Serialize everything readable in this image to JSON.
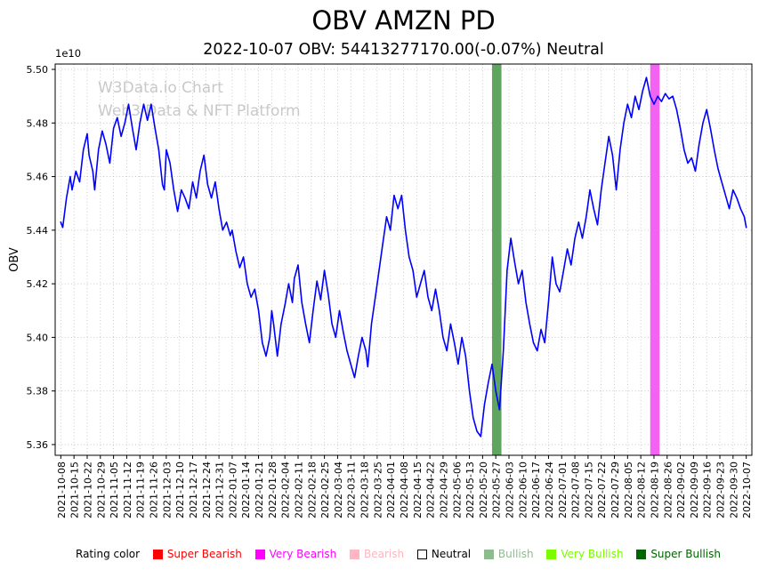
{
  "chart_data": {
    "type": "line",
    "title": "OBV AMZN PD",
    "subtitle": "2022-10-07 OBV: 54413277170.00(-0.07%) Neutral",
    "ylabel": "OBV",
    "offset_label": "1e10",
    "units": "y values are in 1e10",
    "watermark": [
      "W3Data.io Chart",
      "Web3 Data & NFT Platform"
    ],
    "series_name": "OBV",
    "line_color": "#0000ff",
    "grid": true,
    "ylim": [
      5.356,
      5.502
    ],
    "xlim": [
      -3,
      367
    ],
    "y_ticks": [
      5.36,
      5.38,
      5.4,
      5.42,
      5.44,
      5.46,
      5.48,
      5.5
    ],
    "x_tick_interval_days": 7,
    "x_tick_labels": [
      "2021-10-08",
      "2021-10-15",
      "2021-10-22",
      "2021-10-29",
      "2021-11-05",
      "2021-11-12",
      "2021-11-19",
      "2021-11-26",
      "2021-12-03",
      "2021-12-10",
      "2021-12-17",
      "2021-12-24",
      "2021-12-31",
      "2022-01-07",
      "2022-01-14",
      "2022-01-21",
      "2022-01-28",
      "2022-02-04",
      "2022-02-11",
      "2022-02-18",
      "2022-02-25",
      "2022-03-04",
      "2022-03-11",
      "2022-03-18",
      "2022-03-25",
      "2022-04-01",
      "2022-04-08",
      "2022-04-15",
      "2022-04-22",
      "2022-04-29",
      "2022-05-06",
      "2022-05-13",
      "2022-05-20",
      "2022-05-27",
      "2022-06-03",
      "2022-06-10",
      "2022-06-17",
      "2022-06-24",
      "2022-07-01",
      "2022-07-08",
      "2022-07-15",
      "2022-07-22",
      "2022-07-29",
      "2022-08-05",
      "2022-08-12",
      "2022-08-19",
      "2022-08-26",
      "2022-09-02",
      "2022-09-09",
      "2022-09-16",
      "2022-09-23",
      "2022-09-30",
      "2022-10-07"
    ],
    "bands": [
      {
        "rating": "Bullish",
        "from_day": 229,
        "to_day": 234,
        "color": "#5fa55f"
      },
      {
        "rating": "Very Bearish",
        "from_day": 313,
        "to_day": 318,
        "color": "#f263f2"
      }
    ],
    "points": [
      [
        0,
        5.443
      ],
      [
        1,
        5.441
      ],
      [
        3,
        5.452
      ],
      [
        5,
        5.46
      ],
      [
        6,
        5.455
      ],
      [
        8,
        5.462
      ],
      [
        10,
        5.458
      ],
      [
        12,
        5.47
      ],
      [
        14,
        5.476
      ],
      [
        15,
        5.468
      ],
      [
        17,
        5.462
      ],
      [
        18,
        5.455
      ],
      [
        20,
        5.47
      ],
      [
        22,
        5.477
      ],
      [
        24,
        5.472
      ],
      [
        26,
        5.465
      ],
      [
        28,
        5.478
      ],
      [
        30,
        5.482
      ],
      [
        32,
        5.475
      ],
      [
        34,
        5.48
      ],
      [
        36,
        5.487
      ],
      [
        38,
        5.478
      ],
      [
        40,
        5.47
      ],
      [
        42,
        5.48
      ],
      [
        44,
        5.487
      ],
      [
        46,
        5.481
      ],
      [
        48,
        5.487
      ],
      [
        50,
        5.478
      ],
      [
        52,
        5.47
      ],
      [
        54,
        5.457
      ],
      [
        55,
        5.455
      ],
      [
        56,
        5.47
      ],
      [
        58,
        5.465
      ],
      [
        60,
        5.455
      ],
      [
        62,
        5.447
      ],
      [
        64,
        5.455
      ],
      [
        66,
        5.452
      ],
      [
        68,
        5.448
      ],
      [
        70,
        5.458
      ],
      [
        72,
        5.452
      ],
      [
        74,
        5.462
      ],
      [
        76,
        5.468
      ],
      [
        78,
        5.457
      ],
      [
        80,
        5.452
      ],
      [
        82,
        5.458
      ],
      [
        84,
        5.448
      ],
      [
        86,
        5.44
      ],
      [
        88,
        5.443
      ],
      [
        90,
        5.438
      ],
      [
        91,
        5.44
      ],
      [
        93,
        5.432
      ],
      [
        95,
        5.426
      ],
      [
        97,
        5.43
      ],
      [
        99,
        5.42
      ],
      [
        101,
        5.415
      ],
      [
        103,
        5.418
      ],
      [
        105,
        5.41
      ],
      [
        107,
        5.398
      ],
      [
        109,
        5.393
      ],
      [
        111,
        5.4
      ],
      [
        112,
        5.41
      ],
      [
        113,
        5.405
      ],
      [
        115,
        5.393
      ],
      [
        117,
        5.405
      ],
      [
        119,
        5.412
      ],
      [
        121,
        5.42
      ],
      [
        123,
        5.413
      ],
      [
        124,
        5.422
      ],
      [
        126,
        5.427
      ],
      [
        128,
        5.413
      ],
      [
        130,
        5.405
      ],
      [
        132,
        5.398
      ],
      [
        134,
        5.41
      ],
      [
        136,
        5.421
      ],
      [
        138,
        5.414
      ],
      [
        140,
        5.425
      ],
      [
        142,
        5.416
      ],
      [
        144,
        5.405
      ],
      [
        146,
        5.4
      ],
      [
        148,
        5.41
      ],
      [
        150,
        5.402
      ],
      [
        152,
        5.395
      ],
      [
        154,
        5.39
      ],
      [
        156,
        5.385
      ],
      [
        158,
        5.393
      ],
      [
        160,
        5.4
      ],
      [
        162,
        5.395
      ],
      [
        163,
        5.389
      ],
      [
        165,
        5.405
      ],
      [
        167,
        5.415
      ],
      [
        169,
        5.425
      ],
      [
        171,
        5.435
      ],
      [
        173,
        5.445
      ],
      [
        175,
        5.44
      ],
      [
        177,
        5.453
      ],
      [
        179,
        5.448
      ],
      [
        181,
        5.453
      ],
      [
        183,
        5.44
      ],
      [
        185,
        5.43
      ],
      [
        187,
        5.425
      ],
      [
        189,
        5.415
      ],
      [
        191,
        5.42
      ],
      [
        193,
        5.425
      ],
      [
        195,
        5.415
      ],
      [
        197,
        5.41
      ],
      [
        199,
        5.418
      ],
      [
        201,
        5.41
      ],
      [
        203,
        5.4
      ],
      [
        205,
        5.395
      ],
      [
        207,
        5.405
      ],
      [
        209,
        5.398
      ],
      [
        211,
        5.39
      ],
      [
        213,
        5.4
      ],
      [
        215,
        5.393
      ],
      [
        217,
        5.38
      ],
      [
        219,
        5.37
      ],
      [
        221,
        5.365
      ],
      [
        223,
        5.363
      ],
      [
        225,
        5.375
      ],
      [
        227,
        5.383
      ],
      [
        229,
        5.39
      ],
      [
        231,
        5.38
      ],
      [
        233,
        5.373
      ],
      [
        235,
        5.395
      ],
      [
        236,
        5.41
      ],
      [
        237,
        5.425
      ],
      [
        239,
        5.437
      ],
      [
        241,
        5.428
      ],
      [
        243,
        5.42
      ],
      [
        245,
        5.425
      ],
      [
        247,
        5.413
      ],
      [
        249,
        5.405
      ],
      [
        251,
        5.398
      ],
      [
        253,
        5.395
      ],
      [
        255,
        5.403
      ],
      [
        257,
        5.398
      ],
      [
        259,
        5.413
      ],
      [
        261,
        5.43
      ],
      [
        263,
        5.42
      ],
      [
        265,
        5.417
      ],
      [
        267,
        5.425
      ],
      [
        269,
        5.433
      ],
      [
        271,
        5.427
      ],
      [
        273,
        5.437
      ],
      [
        275,
        5.443
      ],
      [
        277,
        5.437
      ],
      [
        279,
        5.445
      ],
      [
        281,
        5.455
      ],
      [
        283,
        5.448
      ],
      [
        285,
        5.442
      ],
      [
        287,
        5.455
      ],
      [
        289,
        5.465
      ],
      [
        291,
        5.475
      ],
      [
        293,
        5.468
      ],
      [
        295,
        5.455
      ],
      [
        297,
        5.47
      ],
      [
        299,
        5.48
      ],
      [
        301,
        5.487
      ],
      [
        303,
        5.482
      ],
      [
        305,
        5.49
      ],
      [
        307,
        5.485
      ],
      [
        309,
        5.492
      ],
      [
        311,
        5.497
      ],
      [
        313,
        5.49
      ],
      [
        315,
        5.487
      ],
      [
        317,
        5.49
      ],
      [
        319,
        5.488
      ],
      [
        321,
        5.491
      ],
      [
        323,
        5.489
      ],
      [
        325,
        5.49
      ],
      [
        327,
        5.485
      ],
      [
        329,
        5.478
      ],
      [
        331,
        5.47
      ],
      [
        333,
        5.465
      ],
      [
        335,
        5.467
      ],
      [
        337,
        5.462
      ],
      [
        339,
        5.472
      ],
      [
        341,
        5.48
      ],
      [
        343,
        5.485
      ],
      [
        345,
        5.478
      ],
      [
        347,
        5.47
      ],
      [
        349,
        5.463
      ],
      [
        351,
        5.458
      ],
      [
        353,
        5.453
      ],
      [
        355,
        5.448
      ],
      [
        357,
        5.455
      ],
      [
        359,
        5.452
      ],
      [
        361,
        5.448
      ],
      [
        363,
        5.445
      ],
      [
        364,
        5.441
      ]
    ]
  },
  "legend": {
    "title": "Rating color",
    "items": [
      {
        "label": "Super Bearish",
        "color": "#ff0000",
        "text_color": "#ff0000",
        "edge": "#ff0000"
      },
      {
        "label": "Very Bearish",
        "color": "#ff00ff",
        "text_color": "#ff00ff",
        "edge": "#ff00ff"
      },
      {
        "label": "Bearish",
        "color": "#ffb6c1",
        "text_color": "#ffb6c1",
        "edge": "#ffb6c1"
      },
      {
        "label": "Neutral",
        "color": "#ffffff",
        "text_color": "#000000",
        "edge": "#000000"
      },
      {
        "label": "Bullish",
        "color": "#8fbc8f",
        "text_color": "#8fbc8f",
        "edge": "#8fbc8f"
      },
      {
        "label": "Very Bullish",
        "color": "#7cfc00",
        "text_color": "#7cfc00",
        "edge": "#7cfc00"
      },
      {
        "label": "Super Bullish",
        "color": "#006400",
        "text_color": "#006400",
        "edge": "#006400"
      }
    ]
  }
}
